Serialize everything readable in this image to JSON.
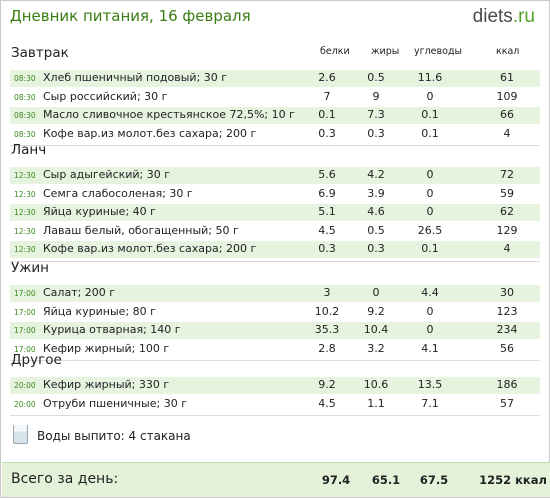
{
  "title": "Дневник питания, 16 февраля",
  "logo": {
    "name": "diets",
    "dot": ".",
    "tld": "ru"
  },
  "columns": [
    "белки",
    "жиры",
    "углеводы",
    "ккал"
  ],
  "sections": [
    {
      "name": "Завтрак",
      "items": [
        {
          "time": "08:30",
          "food": "Хлеб пшеничный подовый; 30 г",
          "protein": "2.6",
          "fat": "0.5",
          "carbs": "11.6",
          "kcal": "61"
        },
        {
          "time": "08:30",
          "food": "Сыр российский; 30 г",
          "protein": "7",
          "fat": "9",
          "carbs": "0",
          "kcal": "109"
        },
        {
          "time": "08:30",
          "food": "Масло сливочное крестьянское 72,5%; 10 г",
          "protein": "0.1",
          "fat": "7.3",
          "carbs": "0.1",
          "kcal": "66"
        },
        {
          "time": "08:30",
          "food": "Кофе вар.из молот.без сахара; 200 г",
          "protein": "0.3",
          "fat": "0.3",
          "carbs": "0.1",
          "kcal": "4"
        }
      ]
    },
    {
      "name": "Ланч",
      "items": [
        {
          "time": "12:30",
          "food": "Сыр адыгейский; 30 г",
          "protein": "5.6",
          "fat": "4.2",
          "carbs": "0",
          "kcal": "72"
        },
        {
          "time": "12:30",
          "food": "Семга слабосоленая; 30 г",
          "protein": "6.9",
          "fat": "3.9",
          "carbs": "0",
          "kcal": "59"
        },
        {
          "time": "12:30",
          "food": "Яйца куриные; 40 г",
          "protein": "5.1",
          "fat": "4.6",
          "carbs": "0",
          "kcal": "62"
        },
        {
          "time": "12:30",
          "food": "Лаваш белый, обогащенный; 50 г",
          "protein": "4.5",
          "fat": "0.5",
          "carbs": "26.5",
          "kcal": "129"
        },
        {
          "time": "12:30",
          "food": "Кофе вар.из молот.без сахара; 200 г",
          "protein": "0.3",
          "fat": "0.3",
          "carbs": "0.1",
          "kcal": "4"
        }
      ]
    },
    {
      "name": "Ужин",
      "items": [
        {
          "time": "17:00",
          "food": "Салат; 200 г",
          "protein": "3",
          "fat": "0",
          "carbs": "4.4",
          "kcal": "30"
        },
        {
          "time": "17:00",
          "food": "Яйца куриные; 80 г",
          "protein": "10.2",
          "fat": "9.2",
          "carbs": "0",
          "kcal": "123"
        },
        {
          "time": "17:00",
          "food": "Курица отварная; 140 г",
          "protein": "35.3",
          "fat": "10.4",
          "carbs": "0",
          "kcal": "234"
        },
        {
          "time": "17:00",
          "food": "Кефир жирный; 100 г",
          "protein": "2.8",
          "fat": "3.2",
          "carbs": "4.1",
          "kcal": "56"
        }
      ]
    },
    {
      "name": "Другое",
      "items": [
        {
          "time": "20:00",
          "food": "Кефир жирный; 330 г",
          "protein": "9.2",
          "fat": "10.6",
          "carbs": "13.5",
          "kcal": "186"
        },
        {
          "time": "20:00",
          "food": "Отруби пшеничные; 30 г",
          "protein": "4.5",
          "fat": "1.1",
          "carbs": "7.1",
          "kcal": "57"
        }
      ]
    }
  ],
  "water": {
    "text": "Воды выпито: 4 стакана"
  },
  "totals": {
    "label": "Всего за день:",
    "protein": "97.4",
    "fat": "65.1",
    "carbs": "67.5",
    "kcal": "1252 ккал"
  }
}
